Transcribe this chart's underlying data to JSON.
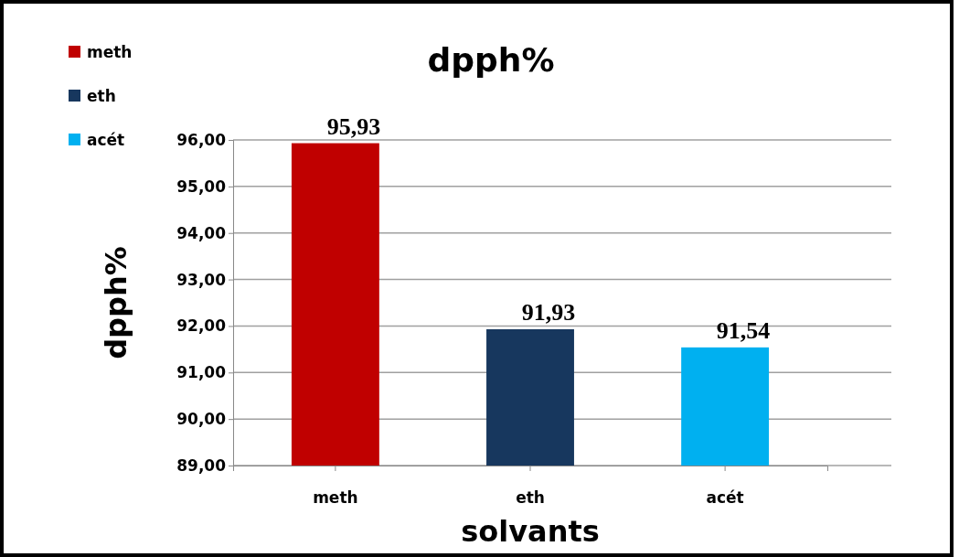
{
  "chart_data": {
    "type": "bar",
    "title": "dpph%",
    "xlabel": "solvants",
    "ylabel": "dpph%",
    "categories": [
      "meth",
      "eth",
      "acét"
    ],
    "series": [
      {
        "name": "meth",
        "color": "#c00000",
        "values": [
          95.93,
          null,
          null
        ],
        "value_labels": [
          "95,93",
          null,
          null
        ]
      },
      {
        "name": "eth",
        "color": "#17375e",
        "values": [
          null,
          91.93,
          null
        ],
        "value_labels": [
          null,
          "91,93",
          null
        ]
      },
      {
        "name": "acét",
        "color": "#00b0f0",
        "values": [
          null,
          null,
          91.54
        ],
        "value_labels": [
          null,
          null,
          "91,54"
        ]
      }
    ],
    "ylim": [
      89,
      96
    ],
    "yticks": [
      {
        "value": 89,
        "label": "89,00"
      },
      {
        "value": 90,
        "label": "90,00"
      },
      {
        "value": 91,
        "label": "91,00"
      },
      {
        "value": 92,
        "label": "92,00"
      },
      {
        "value": 93,
        "label": "93,00"
      },
      {
        "value": 94,
        "label": "94,00"
      },
      {
        "value": 95,
        "label": "95,00"
      },
      {
        "value": 96,
        "label": "96,00"
      }
    ],
    "grid": "y",
    "legend": "top left"
  }
}
